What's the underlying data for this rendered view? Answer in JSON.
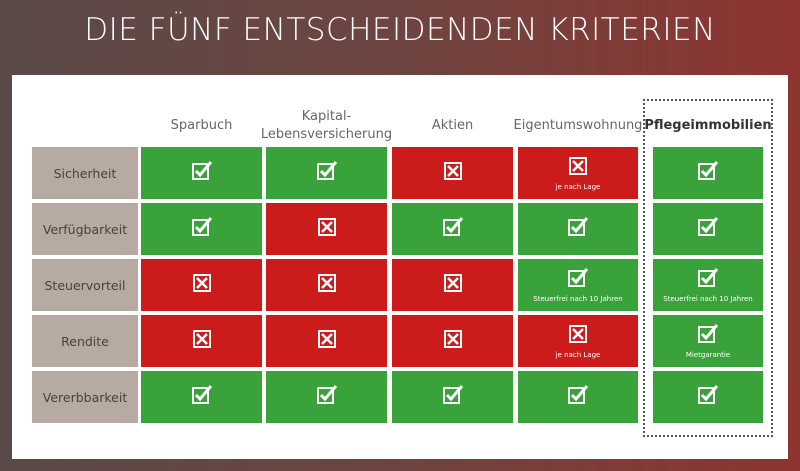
{
  "title": "DIE FÜNF ENTSCHEIDENDEN KRITERIEN",
  "colors": {
    "yes": "#3aa23a",
    "no": "#cc1b1b",
    "label": "#b7aaa2"
  },
  "columns": [
    "Sparbuch",
    "Kapital-\nLebensversicherung",
    "Aktien",
    "Eigentumswohnung",
    "Pflegeimmobilien"
  ],
  "rows": [
    {
      "label": "Sicherheit",
      "cells": [
        {
          "v": true
        },
        {
          "v": true
        },
        {
          "v": false
        },
        {
          "v": false,
          "note": "je nach Lage"
        },
        {
          "v": true
        }
      ]
    },
    {
      "label": "Verfügbarkeit",
      "cells": [
        {
          "v": true
        },
        {
          "v": false
        },
        {
          "v": true
        },
        {
          "v": true
        },
        {
          "v": true
        }
      ]
    },
    {
      "label": "Steuervorteil",
      "cells": [
        {
          "v": false
        },
        {
          "v": false
        },
        {
          "v": false
        },
        {
          "v": true,
          "note": "Steuerfrei nach 10 Jahren"
        },
        {
          "v": true,
          "note": "Steuerfrei nach 10 Jahren"
        }
      ]
    },
    {
      "label": "Rendite",
      "cells": [
        {
          "v": false
        },
        {
          "v": false
        },
        {
          "v": false
        },
        {
          "v": false,
          "note": "je nach Lage"
        },
        {
          "v": true,
          "note": "Mietgarantie"
        }
      ]
    },
    {
      "label": "Vererbbarkeit",
      "cells": [
        {
          "v": true
        },
        {
          "v": true
        },
        {
          "v": true
        },
        {
          "v": true
        },
        {
          "v": true
        }
      ]
    }
  ]
}
